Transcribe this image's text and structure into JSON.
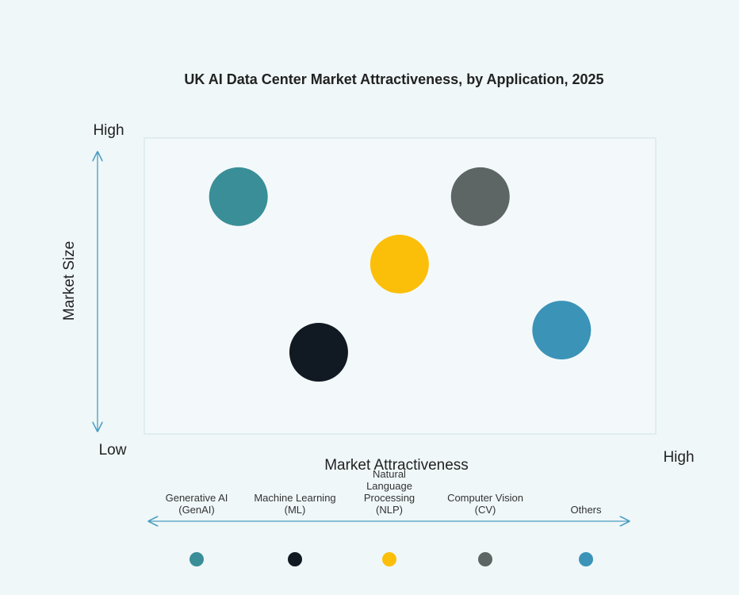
{
  "chart_data": {
    "type": "scatter",
    "title": "UK AI Data Center Market Attractiveness,  by Application, 2025",
    "x_label": "Market Attractiveness",
    "y_label": "Market Size",
    "y_high_label": "High",
    "low_label": "Low",
    "x_high_label": "High",
    "xlim": [
      0,
      100
    ],
    "ylim": [
      0,
      100
    ],
    "series": [
      {
        "name": "Generative AI (GenAI)",
        "color": "#3a8e97",
        "x": [
          18.4
        ],
        "values": [
          80.2
        ]
      },
      {
        "name": "Machine Learning (ML)",
        "color": "#111a22",
        "x": [
          34.1
        ],
        "values": [
          27.6
        ]
      },
      {
        "name": "Natural Language Processing (NLP)",
        "color": "#fbbf0a",
        "x": [
          49.9
        ],
        "values": [
          57.4
        ]
      },
      {
        "name": "Computer Vision (CV)",
        "color": "#5d6665",
        "x": [
          65.7
        ],
        "values": [
          80.2
        ]
      },
      {
        "name": "Others",
        "color": "#3b93b8",
        "x": [
          81.6
        ],
        "values": [
          35.1
        ]
      }
    ]
  }
}
